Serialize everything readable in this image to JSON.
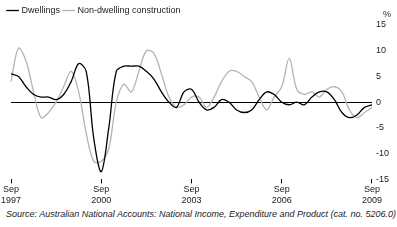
{
  "chart_data": {
    "type": "line",
    "categories": [
      "Sep 1997",
      null,
      null,
      null,
      null,
      null,
      null,
      null,
      null,
      null,
      null,
      null,
      "Sep 2000",
      null,
      null,
      null,
      null,
      null,
      null,
      null,
      null,
      null,
      null,
      null,
      "Sep 2003",
      null,
      null,
      null,
      null,
      null,
      null,
      null,
      null,
      null,
      null,
      null,
      "Sep 2006",
      null,
      null,
      null,
      null,
      null,
      null,
      null,
      null,
      null,
      null,
      null,
      "Sep 2009"
    ],
    "series": [
      {
        "name": "Dwellings",
        "color": "#000000",
        "values": [
          5.5,
          5,
          3,
          1.5,
          1,
          1,
          0.5,
          1.5,
          4,
          7.5,
          6,
          -7,
          -13.5,
          -5,
          6,
          7,
          7,
          7,
          6,
          4.5,
          2,
          0,
          -1,
          2,
          2.5,
          0,
          -1.5,
          -1,
          0.5,
          0,
          -1.5,
          -2,
          -1.5,
          0.5,
          2,
          1.5,
          0,
          -0.5,
          0,
          -0.5,
          1,
          2,
          2,
          0.5,
          -2,
          -3,
          -2.5,
          -1,
          -0.5
        ]
      },
      {
        "name": "Non-dwelling construction",
        "color": "#b4b4b4",
        "values": [
          4,
          10.5,
          8,
          2,
          -3,
          -2,
          0,
          3,
          6,
          2,
          -6,
          -11.5,
          -11.5,
          -9,
          0,
          3.5,
          2,
          6,
          10,
          9.5,
          5.5,
          1,
          -1,
          -0.5,
          1,
          1,
          -1,
          1,
          4,
          6,
          6,
          5,
          4,
          1,
          -1.5,
          1,
          3,
          8.5,
          2.5,
          1.5,
          2,
          1,
          2.5,
          3,
          2,
          -1.5,
          -3,
          -2,
          -1
        ]
      }
    ],
    "ylim": [
      -15,
      15
    ],
    "yticks": [
      -15,
      -10,
      -5,
      0,
      5,
      10,
      15
    ],
    "y_label": "%",
    "grid": false,
    "legend": "top-left",
    "source": "Source: Australian National Accounts: National Income, Expenditure and Product (cat. no. 5206.0)"
  }
}
